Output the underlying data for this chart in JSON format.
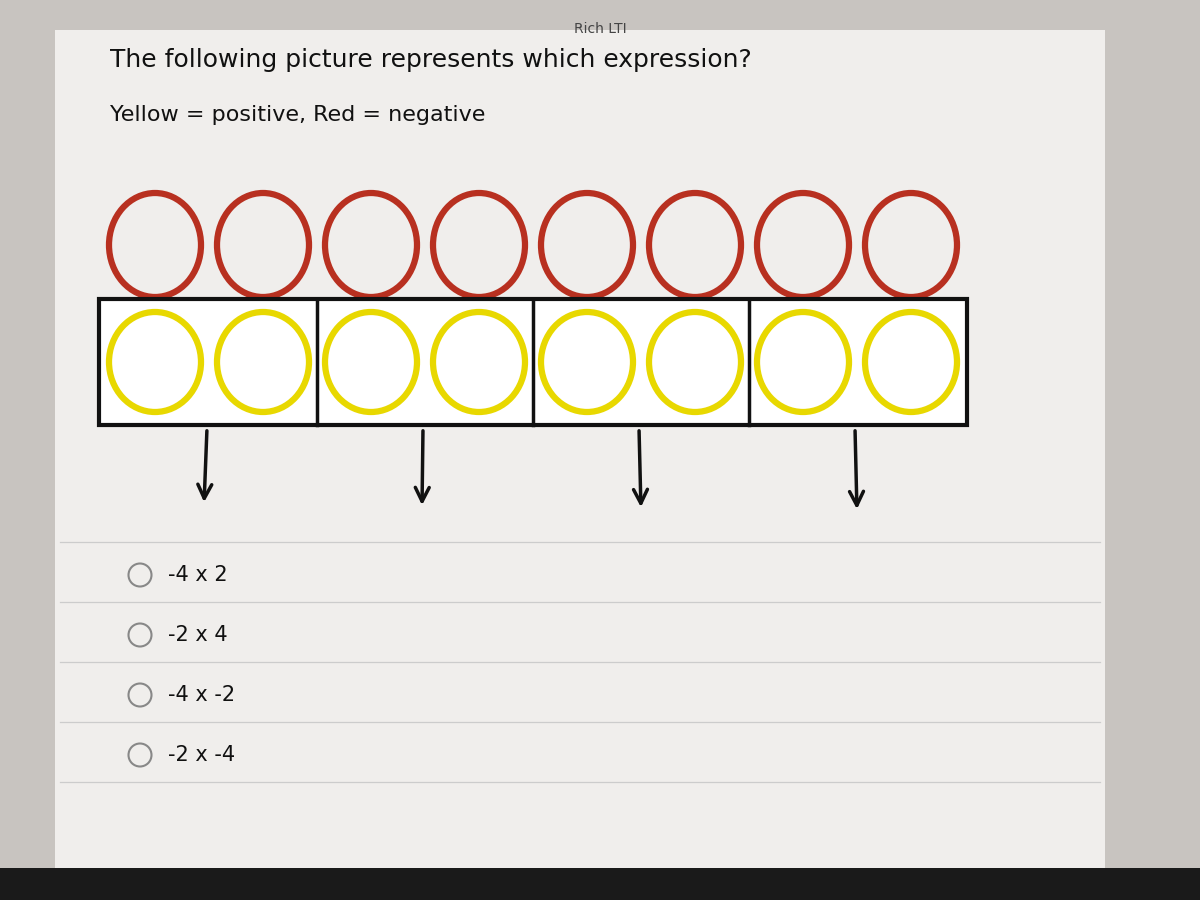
{
  "title_text": "The following picture represents which expression?",
  "subtitle_text": "Yellow = positive, Red = negative",
  "outer_bg": "#c8c4c0",
  "card_bg": "#f0eeec",
  "red_color": "#b83020",
  "yellow_color": "#e8d800",
  "box_color": "#111111",
  "arrow_color": "#111111",
  "red_circles_count": 8,
  "yellow_groups": 4,
  "yellow_per_group": 2,
  "choices": [
    "-4 x 2",
    "-2 x 4",
    "-4 x -2",
    "-2 x -4"
  ],
  "header_text": "Rich LTI",
  "header_color": "#444444",
  "title_fontsize": 18,
  "subtitle_fontsize": 16,
  "choice_fontsize": 15
}
